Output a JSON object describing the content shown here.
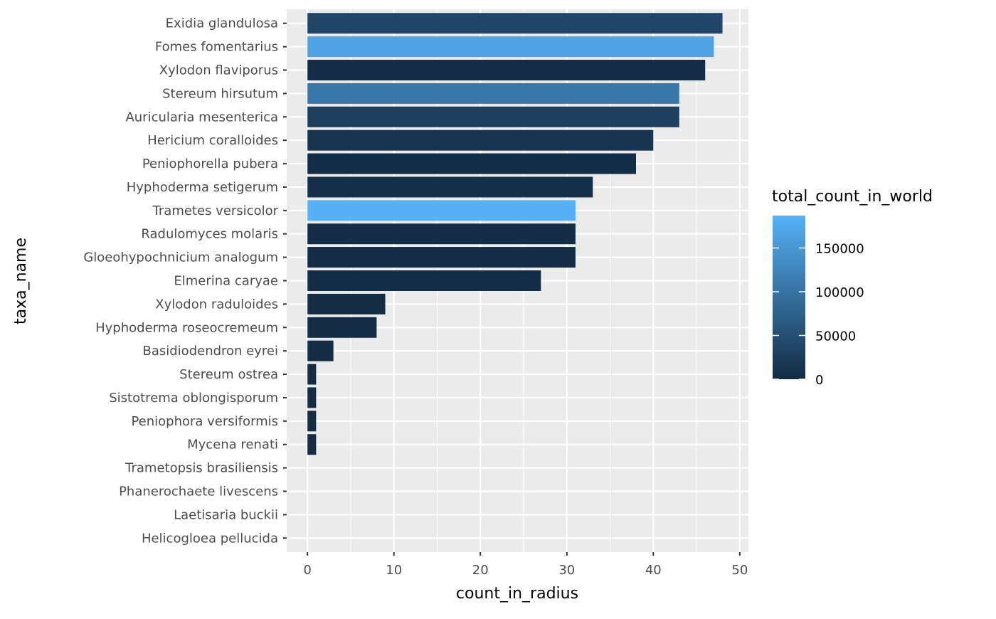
{
  "chart_data": {
    "type": "bar",
    "orientation": "horizontal",
    "xlabel": "count_in_radius",
    "ylabel": "taxa_name",
    "xlim": [
      -2.4,
      51
    ],
    "xticks": [
      0,
      10,
      20,
      30,
      40,
      50
    ],
    "grid": true,
    "categories": [
      "Exidia glandulosa",
      "Fomes fomentarius",
      "Xylodon flaviporus",
      "Stereum hirsutum",
      "Auricularia mesenterica",
      "Hericium coralloides",
      "Peniophorella pubera",
      "Hyphoderma setigerum",
      "Trametes versicolor",
      "Radulomyces molaris",
      "Gloeohypochnicium analogum",
      "Elmerina caryae",
      "Xylodon raduloides",
      "Hyphoderma roseocremeum",
      "Basidiodendron eyrei",
      "Stereum ostrea",
      "Sistotrema oblongisporum",
      "Peniophora versiformis",
      "Mycena renati",
      "Trametopsis brasiliensis",
      "Phanerochaete livescens",
      "Laetisaria buckii",
      "Helicogloea pellucida"
    ],
    "values": [
      48,
      47,
      46,
      43,
      43,
      40,
      38,
      33,
      31,
      31,
      31,
      27,
      9,
      8,
      3,
      1,
      1,
      1,
      1,
      0,
      0,
      0,
      0
    ],
    "fill_values": [
      38000,
      168000,
      2000,
      106000,
      27000,
      15000,
      4000,
      5000,
      187000,
      2000,
      2000,
      3000,
      2500,
      2500,
      2500,
      2500,
      2500,
      2500,
      2500,
      0,
      0,
      0,
      0
    ],
    "legend": {
      "title": "total_count_in_world",
      "position": "right",
      "range": [
        0,
        187000
      ],
      "ticks": [
        0,
        50000,
        100000,
        150000
      ],
      "tick_labels": [
        "0",
        "50000",
        "100000",
        "150000"
      ],
      "low_color": "#132B43",
      "high_color": "#56B1F7"
    },
    "colors": {
      "panel": "#EBEBEB",
      "grid": "#FFFFFF",
      "text": "#4D4D4D",
      "title": "#000000"
    }
  }
}
